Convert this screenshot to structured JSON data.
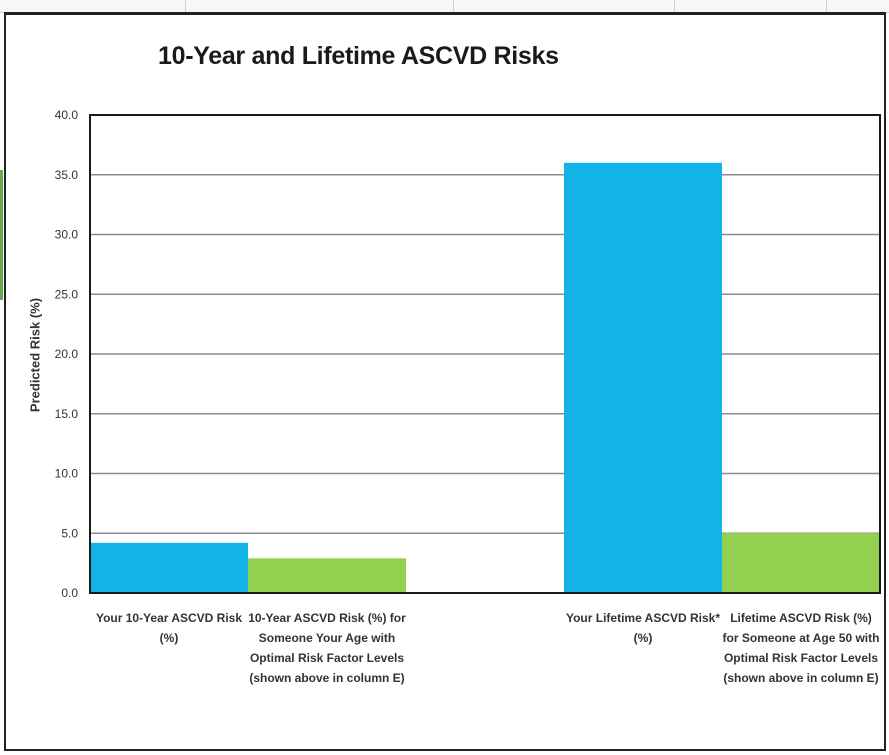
{
  "chart_data": {
    "type": "bar",
    "title": "10-Year and Lifetime ASCVD Risks",
    "xlabel": "",
    "ylabel": "Predicted Risk (%)",
    "ylim": [
      0,
      40
    ],
    "yticks": [
      "0.0",
      "5.0",
      "10.0",
      "15.0",
      "20.0",
      "25.0",
      "30.0",
      "35.0",
      "40.0"
    ],
    "grid": true,
    "legend": "none",
    "groups": [
      {
        "bars": [
          {
            "label": "Your 10-Year ASCVD Risk (%)",
            "value": 4.2,
            "color": "#12b4e8"
          },
          {
            "label": "10-Year ASCVD Risk (%) for Someone Your Age with Optimal Risk Factor Levels (shown above in column E)",
            "value": 2.9,
            "color": "#92d050"
          }
        ]
      },
      {
        "bars": [
          {
            "label": "Your Lifetime ASCVD Risk* (%)",
            "value": 36.0,
            "color": "#12b4e8"
          },
          {
            "label": "Lifetime ASCVD Risk (%) for Someone at Age 50 with Optimal Risk Factor Levels (shown above in column E)",
            "value": 5.0,
            "color": "#92d050"
          }
        ]
      }
    ]
  }
}
